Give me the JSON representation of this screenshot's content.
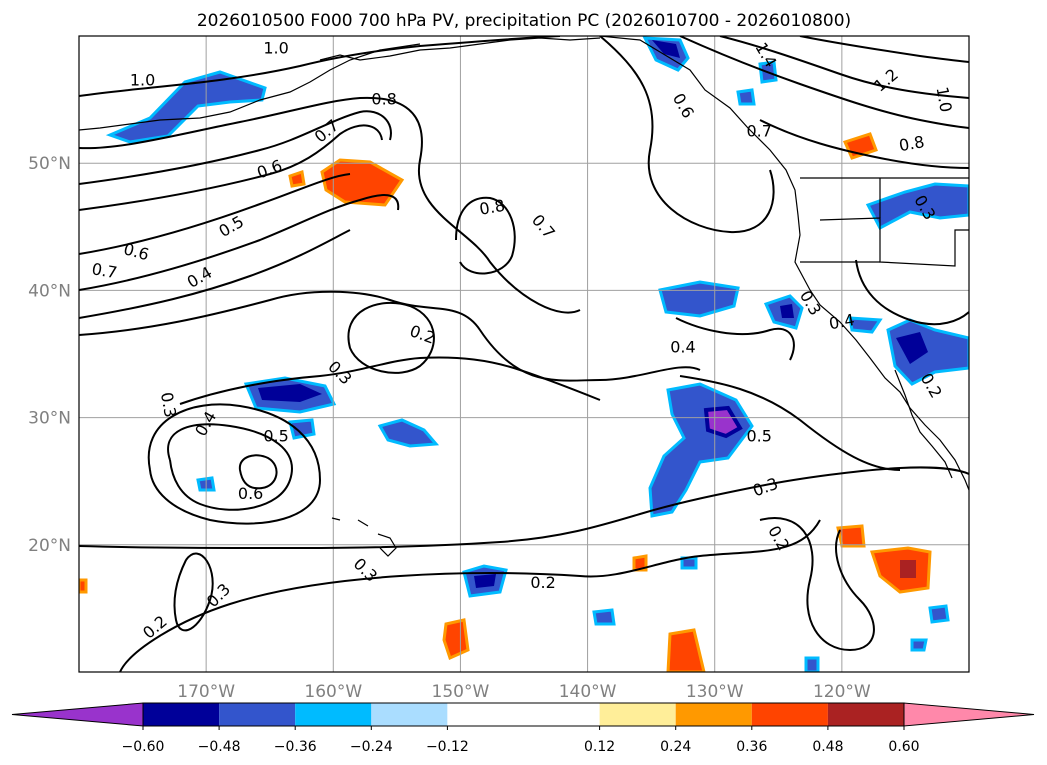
{
  "chart_data": {
    "type": "map",
    "title": "2026010500 F000 700 hPa PV, precipitation PC (2026010700 - 2026010800)",
    "map_extent": {
      "lon": [
        -180,
        -110
      ],
      "lat": [
        10,
        60
      ]
    },
    "lat_ticks": [
      {
        "value": 50,
        "label": "50°N"
      },
      {
        "value": 40,
        "label": "40°N"
      },
      {
        "value": 30,
        "label": "30°N"
      },
      {
        "value": 20,
        "label": "20°N"
      }
    ],
    "lon_ticks": [
      {
        "value": -170,
        "label": "170°W"
      },
      {
        "value": -160,
        "label": "160°W"
      },
      {
        "value": -150,
        "label": "150°W"
      },
      {
        "value": -140,
        "label": "140°W"
      },
      {
        "value": -130,
        "label": "130°W"
      },
      {
        "value": -120,
        "label": "120°W"
      }
    ],
    "grid": true,
    "colorbar": {
      "extend": "both",
      "boundaries": [
        -0.72,
        -0.6,
        -0.48,
        -0.36,
        -0.24,
        -0.12,
        0.12,
        0.24,
        0.36,
        0.48,
        0.6,
        0.72
      ],
      "colors": [
        "#9933cc",
        "#000099",
        "#3355cc",
        "#00bbff",
        "#aaddff",
        "#ffffff",
        "#ffee99",
        "#ff9900",
        "#ff4400",
        "#aa2222",
        "#ff88aa"
      ],
      "tick_labels": [
        "−0.60",
        "−0.48",
        "−0.36",
        "−0.24",
        "−0.12",
        "0.12",
        "0.24",
        "0.36",
        "0.48",
        "0.60"
      ]
    },
    "contour_labels": [
      {
        "text": "1.0",
        "lon": -164.5,
        "lat": 59.0,
        "rot": 0
      },
      {
        "text": "1.0",
        "lon": -175.0,
        "lat": 56.5,
        "rot": 0
      },
      {
        "text": "0.8",
        "lon": -156.0,
        "lat": 55.0,
        "rot": 0
      },
      {
        "text": "0.7",
        "lon": -160.5,
        "lat": 52.5,
        "rot": -40
      },
      {
        "text": "0.6",
        "lon": -165.0,
        "lat": 49.5,
        "rot": -20
      },
      {
        "text": "0.5",
        "lon": -168.0,
        "lat": 45.0,
        "rot": -30
      },
      {
        "text": "0.6",
        "lon": -175.5,
        "lat": 43.0,
        "rot": 15
      },
      {
        "text": "0.7",
        "lon": -178.0,
        "lat": 41.5,
        "rot": 10
      },
      {
        "text": "0.4",
        "lon": -170.5,
        "lat": 41.0,
        "rot": -30
      },
      {
        "text": "0.8",
        "lon": -147.5,
        "lat": 46.5,
        "rot": -10
      },
      {
        "text": "0.7",
        "lon": -143.5,
        "lat": 45.0,
        "rot": 50
      },
      {
        "text": "0.6",
        "lon": -132.5,
        "lat": 54.5,
        "rot": 60
      },
      {
        "text": "0.7",
        "lon": -126.5,
        "lat": 52.5,
        "rot": 0
      },
      {
        "text": "0.8",
        "lon": -114.5,
        "lat": 51.5,
        "rot": -10
      },
      {
        "text": "1.4",
        "lon": -126.0,
        "lat": 58.5,
        "rot": 60
      },
      {
        "text": "1.2",
        "lon": -116.5,
        "lat": 56.5,
        "rot": -40
      },
      {
        "text": "1.0",
        "lon": -112.0,
        "lat": 55.0,
        "rot": 80
      },
      {
        "text": "0.3",
        "lon": -113.5,
        "lat": 46.5,
        "rot": 60
      },
      {
        "text": "0.3",
        "lon": -122.5,
        "lat": 39.0,
        "rot": 60
      },
      {
        "text": "0.4",
        "lon": -120.0,
        "lat": 37.5,
        "rot": -10
      },
      {
        "text": "0.2",
        "lon": -113.0,
        "lat": 32.5,
        "rot": 60
      },
      {
        "text": "0.2",
        "lon": -153.0,
        "lat": 36.5,
        "rot": 20
      },
      {
        "text": "0.3",
        "lon": -159.5,
        "lat": 33.5,
        "rot": 45
      },
      {
        "text": "0.4",
        "lon": -132.5,
        "lat": 35.5,
        "rot": 0
      },
      {
        "text": "0.5",
        "lon": -126.5,
        "lat": 28.5,
        "rot": 0
      },
      {
        "text": "0.3",
        "lon": -126.0,
        "lat": 24.5,
        "rot": -20
      },
      {
        "text": "0.2",
        "lon": -125.0,
        "lat": 20.5,
        "rot": 60
      },
      {
        "text": "0.3",
        "lon": -173.0,
        "lat": 31.0,
        "rot": 80
      },
      {
        "text": "0.4",
        "lon": -170.0,
        "lat": 29.5,
        "rot": -60
      },
      {
        "text": "0.5",
        "lon": -164.5,
        "lat": 28.5,
        "rot": 0
      },
      {
        "text": "0.6",
        "lon": -166.5,
        "lat": 24.0,
        "rot": 0
      },
      {
        "text": "0.3",
        "lon": -157.5,
        "lat": 18.0,
        "rot": 45
      },
      {
        "text": "0.3",
        "lon": -169.0,
        "lat": 16.0,
        "rot": -45
      },
      {
        "text": "0.2",
        "lon": -174.0,
        "lat": 13.5,
        "rot": -40
      },
      {
        "text": "0.2",
        "lon": -143.5,
        "lat": 17.0,
        "rot": 0
      }
    ]
  }
}
